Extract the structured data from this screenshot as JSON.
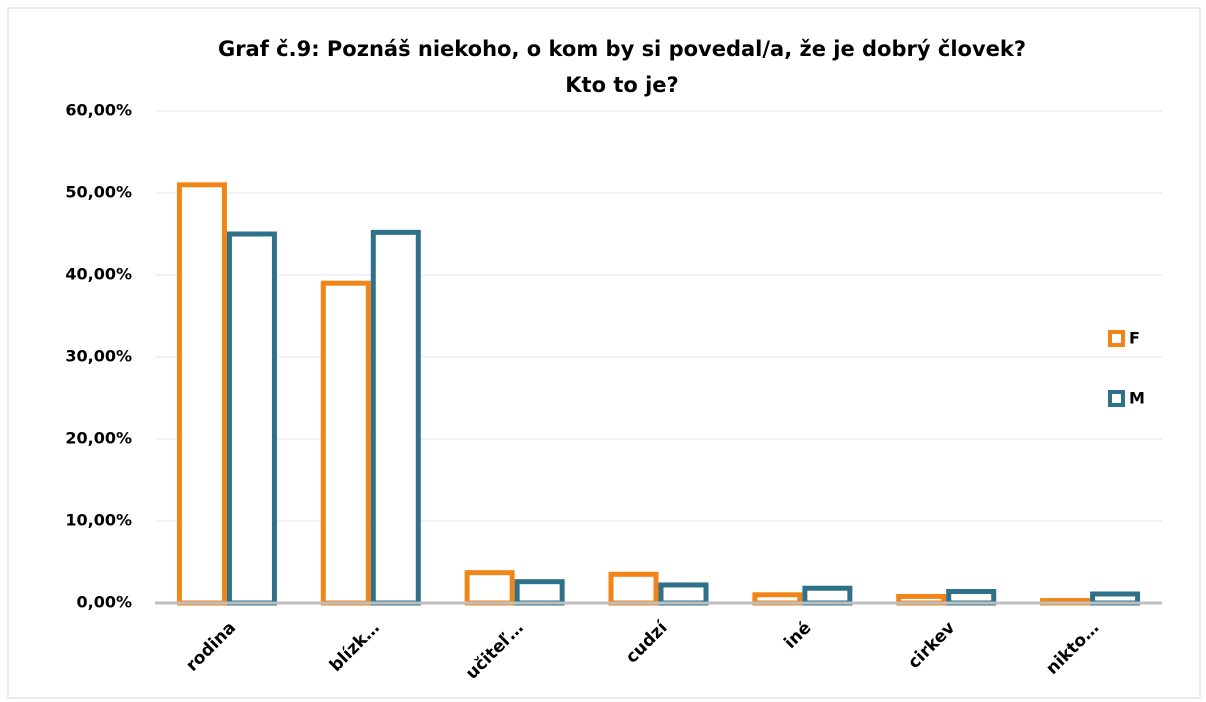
{
  "chart_data": {
    "type": "bar",
    "title": [
      "Graf č.9: Poznáš niekoho, o kom by si povedal/a, že je dobrý človek?",
      "Kto to je?"
    ],
    "categories": [
      "rodina",
      "blízk…",
      "učiteľ…",
      "cudzí",
      "iné",
      "cirkev",
      "nikto…"
    ],
    "series": [
      {
        "name": "F",
        "color": "#f28518",
        "values": [
          51.0,
          39.0,
          3.7,
          3.5,
          1.0,
          0.8,
          0.3
        ]
      },
      {
        "name": "M",
        "color": "#2f7189",
        "values": [
          45.0,
          45.2,
          2.6,
          2.2,
          1.8,
          1.4,
          1.1
        ]
      }
    ],
    "ylim": [
      0,
      60
    ],
    "yticks": [
      {
        "value": 0,
        "label": "0,00%"
      },
      {
        "value": 10,
        "label": "10,00%"
      },
      {
        "value": 20,
        "label": "20,00%"
      },
      {
        "value": 30,
        "label": "30,00%"
      },
      {
        "value": 40,
        "label": "40,00%"
      },
      {
        "value": 50,
        "label": "50,00%"
      },
      {
        "value": 60,
        "label": "60,00%"
      }
    ],
    "grid": true,
    "legend": "right"
  }
}
